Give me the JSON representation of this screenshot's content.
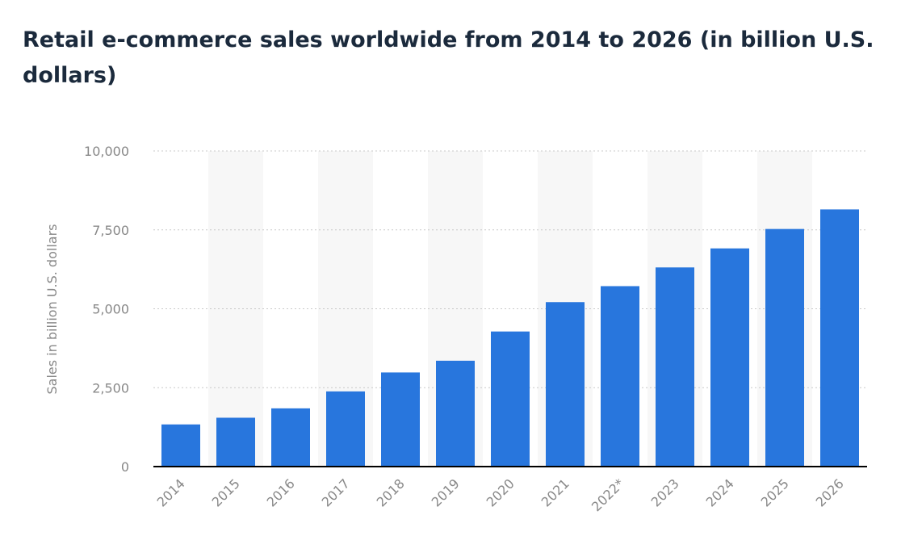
{
  "chart_data": {
    "type": "bar",
    "title": "Retail e-commerce sales worldwide from 2014 to 2026 (in billion U.S. dollars)",
    "xlabel": "",
    "ylabel": "Sales in billion U.S. dollars",
    "categories": [
      "2014",
      "2015",
      "2016",
      "2017",
      "2018",
      "2019",
      "2020",
      "2021",
      "2022*",
      "2023",
      "2024",
      "2025",
      "2026"
    ],
    "values": [
      1336,
      1548,
      1845,
      2382,
      2982,
      3354,
      4280,
      5211,
      5717,
      6310,
      6913,
      7528,
      8148
    ],
    "ylim": [
      0,
      10000
    ],
    "yticks": [
      0,
      2500,
      5000,
      7500,
      10000
    ],
    "ytick_labels": [
      "0",
      "2,500",
      "5,000",
      "7,500",
      "10,000"
    ],
    "grid": true,
    "legend": "none",
    "colors": {
      "bar": "#2876dd",
      "band": "#f7f7f7",
      "grid": "#c8c8c8",
      "axis": "#000000"
    }
  }
}
